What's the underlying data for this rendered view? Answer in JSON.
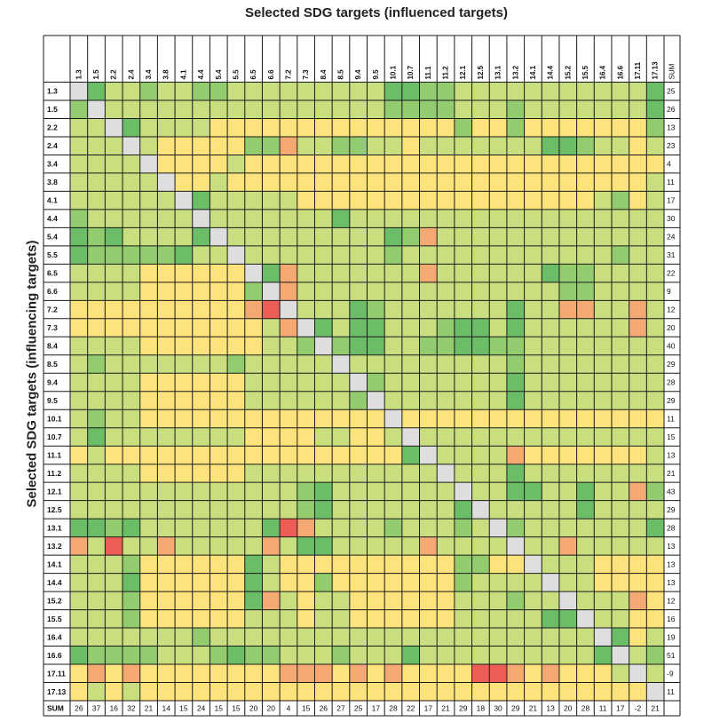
{
  "chart_data": {
    "type": "heatmap",
    "title": "Selected SDG targets (influenced targets)",
    "xlabel": "Selected SDG targets (influenced targets)",
    "ylabel": "Selected SDG targets (influencing targets)",
    "targets": [
      "1.3",
      "1.5",
      "2.2",
      "2.4",
      "3.4",
      "3.8",
      "4.1",
      "4.4",
      "5.4",
      "5.5",
      "6.5",
      "6.6",
      "7.2",
      "7.3",
      "8.4",
      "8.5",
      "9.4",
      "9.5",
      "10.1",
      "10.7",
      "11.1",
      "11.2",
      "12.1",
      "12.5",
      "13.1",
      "13.2",
      "14.1",
      "14.4",
      "15.2",
      "15.5",
      "16.4",
      "16.6",
      "17.11",
      "17.13"
    ],
    "sum_label": "SUM",
    "row_sums": [
      25,
      26,
      13,
      23,
      4,
      11,
      17,
      30,
      24,
      31,
      22,
      9,
      12,
      20,
      40,
      29,
      28,
      29,
      11,
      15,
      13,
      21,
      43,
      29,
      28,
      13,
      13,
      13,
      12,
      16,
      19,
      51,
      -9,
      11
    ],
    "col_sums": [
      26,
      37,
      16,
      32,
      21,
      14,
      15,
      24,
      15,
      15,
      20,
      20,
      4,
      15,
      26,
      27,
      25,
      17,
      28,
      22,
      17,
      21,
      29,
      18,
      30,
      29,
      21,
      13,
      20,
      28,
      11,
      17,
      -2,
      21
    ],
    "score_legend": {
      "-2": "#ee5c56",
      "-1": "#f4a872",
      "0": "#fce37b",
      "1": "#c9df7f",
      "2": "#93cc6e",
      "3": "#6cbd68",
      "diagonal": "#dedede"
    },
    "values": [
      [
        0,
        3,
        1,
        1,
        2,
        1,
        1,
        2,
        2,
        1,
        1,
        1,
        1,
        1,
        1,
        1,
        1,
        1,
        3,
        3,
        2,
        2,
        1,
        1,
        1,
        1,
        1,
        1,
        1,
        1,
        1,
        1,
        1,
        3
      ],
      [
        2,
        0,
        1,
        1,
        1,
        1,
        1,
        1,
        1,
        1,
        1,
        1,
        1,
        1,
        1,
        1,
        1,
        1,
        2,
        2,
        2,
        2,
        1,
        1,
        1,
        2,
        1,
        1,
        1,
        1,
        1,
        1,
        1,
        3
      ],
      [
        1,
        1,
        0,
        3,
        1,
        1,
        1,
        1,
        0,
        0,
        0,
        0,
        0,
        0,
        0,
        0,
        0,
        0,
        0,
        0,
        0,
        0,
        2,
        0,
        0,
        2,
        0,
        0,
        0,
        0,
        0,
        0,
        0,
        2
      ],
      [
        1,
        1,
        1,
        0,
        1,
        0,
        0,
        0,
        0,
        0,
        2,
        2,
        -1,
        1,
        1,
        2,
        2,
        1,
        1,
        0,
        1,
        1,
        1,
        1,
        1,
        1,
        1,
        3,
        3,
        2,
        1,
        1,
        0,
        1
      ],
      [
        1,
        1,
        1,
        1,
        0,
        0,
        0,
        0,
        0,
        1,
        0,
        0,
        0,
        0,
        0,
        0,
        0,
        0,
        0,
        0,
        0,
        0,
        0,
        0,
        0,
        0,
        0,
        0,
        0,
        0,
        0,
        0,
        0,
        0
      ],
      [
        1,
        1,
        1,
        1,
        1,
        0,
        0,
        0,
        1,
        0,
        0,
        0,
        0,
        0,
        0,
        0,
        0,
        0,
        0,
        0,
        0,
        0,
        0,
        0,
        0,
        0,
        0,
        0,
        0,
        0,
        0,
        0,
        0,
        1
      ],
      [
        1,
        1,
        1,
        1,
        1,
        1,
        0,
        3,
        1,
        1,
        1,
        1,
        1,
        0,
        0,
        0,
        0,
        0,
        0,
        0,
        0,
        0,
        0,
        0,
        0,
        0,
        0,
        0,
        0,
        0,
        1,
        2,
        0,
        1
      ],
      [
        2,
        1,
        1,
        1,
        1,
        1,
        1,
        0,
        1,
        1,
        1,
        1,
        1,
        1,
        1,
        3,
        1,
        1,
        1,
        1,
        1,
        1,
        1,
        1,
        1,
        1,
        1,
        1,
        1,
        1,
        1,
        1,
        1,
        1
      ],
      [
        3,
        2,
        3,
        1,
        1,
        1,
        1,
        3,
        0,
        1,
        1,
        1,
        1,
        1,
        1,
        1,
        1,
        1,
        3,
        2,
        -1,
        1,
        1,
        1,
        1,
        1,
        1,
        1,
        1,
        1,
        1,
        1,
        1,
        1
      ],
      [
        3,
        2,
        2,
        2,
        2,
        2,
        3,
        1,
        1,
        0,
        1,
        1,
        1,
        1,
        1,
        1,
        1,
        1,
        2,
        1,
        1,
        1,
        1,
        1,
        1,
        1,
        1,
        1,
        1,
        1,
        1,
        2,
        1,
        1
      ],
      [
        1,
        1,
        1,
        1,
        0,
        0,
        0,
        0,
        0,
        0,
        0,
        3,
        -1,
        1,
        1,
        1,
        1,
        1,
        1,
        1,
        -1,
        1,
        1,
        1,
        1,
        1,
        1,
        3,
        2,
        2,
        1,
        1,
        1,
        1
      ],
      [
        1,
        1,
        1,
        1,
        0,
        0,
        0,
        0,
        0,
        0,
        2,
        0,
        -1,
        1,
        1,
        1,
        1,
        1,
        1,
        1,
        1,
        1,
        1,
        1,
        1,
        1,
        1,
        1,
        2,
        2,
        1,
        1,
        1,
        1
      ],
      [
        0,
        0,
        0,
        0,
        0,
        0,
        0,
        0,
        0,
        0,
        -1,
        -2,
        0,
        1,
        1,
        1,
        3,
        2,
        1,
        1,
        1,
        1,
        1,
        1,
        1,
        3,
        1,
        1,
        -1,
        -1,
        1,
        1,
        -1,
        1
      ],
      [
        0,
        0,
        0,
        0,
        0,
        0,
        0,
        0,
        0,
        0,
        0,
        1,
        -1,
        0,
        3,
        1,
        3,
        3,
        1,
        1,
        1,
        2,
        3,
        3,
        1,
        3,
        1,
        1,
        1,
        1,
        1,
        1,
        -1,
        1
      ],
      [
        1,
        1,
        1,
        1,
        0,
        0,
        0,
        0,
        0,
        0,
        0,
        1,
        1,
        2,
        0,
        2,
        3,
        3,
        1,
        1,
        2,
        2,
        3,
        3,
        2,
        2,
        1,
        1,
        1,
        1,
        1,
        1,
        1,
        1
      ],
      [
        1,
        2,
        1,
        1,
        1,
        1,
        1,
        1,
        1,
        2,
        1,
        1,
        1,
        1,
        1,
        0,
        1,
        1,
        1,
        1,
        1,
        1,
        1,
        1,
        1,
        2,
        1,
        1,
        1,
        1,
        1,
        1,
        1,
        1
      ],
      [
        1,
        1,
        1,
        1,
        0,
        0,
        0,
        0,
        0,
        0,
        1,
        1,
        1,
        1,
        1,
        1,
        0,
        2,
        1,
        1,
        1,
        1,
        1,
        1,
        1,
        3,
        1,
        1,
        1,
        1,
        1,
        1,
        1,
        1
      ],
      [
        1,
        1,
        1,
        1,
        0,
        0,
        0,
        0,
        0,
        0,
        1,
        1,
        1,
        1,
        1,
        1,
        2,
        0,
        1,
        1,
        1,
        1,
        1,
        1,
        1,
        3,
        1,
        1,
        1,
        1,
        1,
        1,
        1,
        1
      ],
      [
        1,
        2,
        1,
        1,
        0,
        0,
        0,
        0,
        0,
        0,
        0,
        0,
        0,
        0,
        0,
        0,
        0,
        0,
        0,
        0,
        0,
        0,
        0,
        0,
        0,
        0,
        0,
        0,
        0,
        0,
        0,
        0,
        0,
        0
      ],
      [
        1,
        3,
        1,
        1,
        1,
        1,
        1,
        1,
        1,
        1,
        0,
        0,
        0,
        0,
        1,
        1,
        0,
        0,
        1,
        0,
        1,
        1,
        1,
        1,
        1,
        1,
        1,
        1,
        1,
        1,
        1,
        1,
        1,
        1
      ],
      [
        0,
        1,
        0,
        0,
        0,
        0,
        0,
        0,
        0,
        0,
        0,
        0,
        0,
        0,
        0,
        0,
        0,
        0,
        0,
        3,
        0,
        1,
        1,
        1,
        1,
        -1,
        0,
        0,
        0,
        0,
        0,
        0,
        0,
        1
      ],
      [
        1,
        1,
        1,
        1,
        0,
        0,
        0,
        0,
        0,
        0,
        1,
        1,
        1,
        1,
        1,
        1,
        1,
        1,
        1,
        1,
        1,
        0,
        1,
        1,
        1,
        3,
        1,
        1,
        1,
        1,
        1,
        1,
        1,
        1
      ],
      [
        1,
        1,
        1,
        1,
        1,
        1,
        1,
        1,
        1,
        1,
        1,
        1,
        1,
        2,
        3,
        1,
        1,
        1,
        1,
        1,
        1,
        1,
        0,
        1,
        1,
        3,
        3,
        1,
        1,
        3,
        1,
        1,
        -1,
        2
      ],
      [
        1,
        1,
        1,
        1,
        1,
        1,
        1,
        1,
        1,
        1,
        1,
        1,
        1,
        2,
        3,
        1,
        1,
        1,
        1,
        1,
        1,
        1,
        3,
        0,
        1,
        1,
        1,
        1,
        1,
        3,
        1,
        1,
        1,
        1
      ],
      [
        3,
        3,
        2,
        3,
        1,
        1,
        1,
        1,
        1,
        1,
        1,
        3,
        -2,
        -1,
        1,
        1,
        1,
        1,
        2,
        1,
        1,
        1,
        2,
        1,
        0,
        2,
        1,
        1,
        1,
        1,
        1,
        1,
        1,
        3
      ],
      [
        -1,
        1,
        -2,
        1,
        1,
        -1,
        1,
        1,
        1,
        1,
        1,
        -1,
        1,
        3,
        3,
        1,
        1,
        1,
        1,
        1,
        -1,
        1,
        1,
        1,
        1,
        0,
        1,
        1,
        -1,
        1,
        1,
        1,
        1,
        1
      ],
      [
        1,
        1,
        1,
        2,
        0,
        0,
        0,
        0,
        0,
        0,
        3,
        1,
        0,
        0,
        0,
        0,
        0,
        0,
        0,
        0,
        0,
        0,
        2,
        2,
        0,
        0,
        0,
        1,
        1,
        1,
        0,
        0,
        0,
        0
      ],
      [
        1,
        1,
        1,
        3,
        0,
        0,
        0,
        0,
        0,
        0,
        3,
        1,
        0,
        0,
        2,
        0,
        0,
        0,
        0,
        0,
        0,
        0,
        2,
        1,
        1,
        1,
        1,
        0,
        1,
        1,
        0,
        0,
        0,
        0
      ],
      [
        1,
        1,
        1,
        2,
        0,
        0,
        0,
        0,
        0,
        0,
        3,
        -1,
        1,
        0,
        1,
        1,
        0,
        0,
        0,
        0,
        0,
        0,
        1,
        1,
        1,
        2,
        1,
        1,
        0,
        1,
        1,
        1,
        -1,
        0
      ],
      [
        1,
        1,
        1,
        2,
        0,
        0,
        0,
        0,
        0,
        0,
        1,
        1,
        1,
        0,
        1,
        1,
        0,
        0,
        0,
        0,
        0,
        0,
        1,
        1,
        1,
        1,
        1,
        3,
        3,
        0,
        1,
        1,
        0,
        0
      ],
      [
        1,
        1,
        1,
        1,
        1,
        1,
        1,
        2,
        1,
        1,
        1,
        1,
        1,
        1,
        1,
        1,
        1,
        1,
        1,
        1,
        1,
        1,
        1,
        1,
        1,
        1,
        1,
        1,
        1,
        1,
        0,
        3,
        0,
        1
      ],
      [
        3,
        2,
        2,
        2,
        2,
        1,
        1,
        1,
        2,
        3,
        2,
        2,
        1,
        1,
        1,
        2,
        1,
        1,
        1,
        3,
        1,
        1,
        1,
        1,
        1,
        1,
        1,
        1,
        1,
        1,
        3,
        0,
        1,
        2
      ],
      [
        0,
        -1,
        0,
        -1,
        0,
        0,
        0,
        0,
        0,
        0,
        0,
        0,
        -1,
        -1,
        -1,
        0,
        -1,
        0,
        -1,
        0,
        0,
        0,
        0,
        -2,
        -2,
        -1,
        0,
        -1,
        0,
        0,
        0,
        1,
        0,
        1
      ],
      [
        0,
        1,
        0,
        1,
        0,
        0,
        0,
        0,
        0,
        0,
        0,
        0,
        0,
        0,
        0,
        0,
        0,
        0,
        0,
        0,
        0,
        0,
        0,
        0,
        0,
        0,
        0,
        0,
        0,
        0,
        0,
        0,
        0,
        0
      ]
    ]
  }
}
